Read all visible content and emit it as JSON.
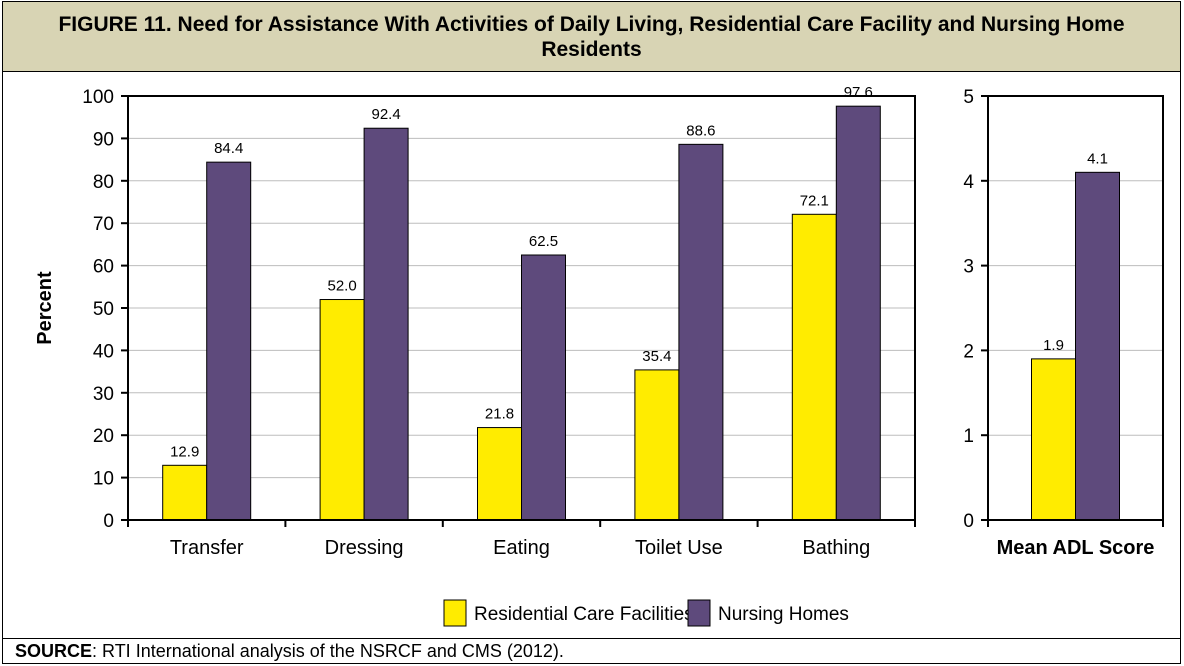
{
  "title": "FIGURE 11. Need for Assistance With Activities of Daily Living, Residential Care Facility and Nursing Home Residents",
  "source": {
    "label": "SOURCE",
    "text": ":  RTI International analysis of the NSRCF and CMS (2012)."
  },
  "colors": {
    "residential": "#ffec00",
    "nursing": "#5e4a7c",
    "title_bg": "#d8d4b4"
  },
  "legend": [
    {
      "name": "Residential Care Facilities",
      "color": "#ffec00"
    },
    {
      "name": "Nursing Homes",
      "color": "#5e4a7c"
    }
  ],
  "chart_data": [
    {
      "type": "bar",
      "categories": [
        "Transfer",
        "Dressing",
        "Eating",
        "Toilet Use",
        "Bathing"
      ],
      "series": [
        {
          "name": "Residential Care Facilities",
          "values": [
            12.9,
            52.0,
            21.8,
            35.4,
            72.1
          ],
          "labels": [
            "12.9",
            "52.0",
            "21.8",
            "35.4",
            "72.1"
          ]
        },
        {
          "name": "Nursing Homes",
          "values": [
            84.4,
            92.4,
            62.5,
            88.6,
            97.6
          ],
          "labels": [
            "84.4",
            "92.4",
            "62.5",
            "88.6",
            "97.6"
          ]
        }
      ],
      "ylabel": "Percent",
      "ylim": [
        0,
        100
      ],
      "yticks": [
        "0",
        "10",
        "20",
        "30",
        "40",
        "50",
        "60",
        "70",
        "80",
        "90",
        "100"
      ],
      "grid": true,
      "legend_position": "bottom-center"
    },
    {
      "type": "bar",
      "categories": [
        "Mean ADL Score"
      ],
      "series": [
        {
          "name": "Residential Care Facilities",
          "values": [
            1.9
          ],
          "labels": [
            "1.9"
          ]
        },
        {
          "name": "Nursing Homes",
          "values": [
            4.1
          ],
          "labels": [
            "4.1"
          ]
        }
      ],
      "ylim": [
        0,
        5
      ],
      "yticks": [
        "0",
        "1",
        "2",
        "3",
        "4",
        "5"
      ],
      "grid": true
    }
  ]
}
